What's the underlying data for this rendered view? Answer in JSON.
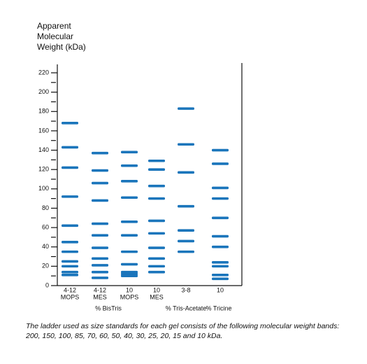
{
  "chart_data": {
    "type": "ladder",
    "title_lines": [
      "Apparent",
      "Molecular",
      "Weight (kDa)"
    ],
    "ylim": [
      0,
      220
    ],
    "yticks": [
      0,
      20,
      40,
      60,
      80,
      100,
      120,
      140,
      160,
      180,
      200,
      220
    ],
    "minor_yticks": [
      10,
      30,
      50,
      70,
      90,
      110,
      130,
      150,
      170,
      190,
      210
    ],
    "color": "#1a75bb",
    "lanes": [
      {
        "label": [
          "4-12",
          "MOPS"
        ],
        "values": [
          168,
          143,
          122,
          92,
          62,
          45,
          35,
          25,
          20,
          14,
          11
        ]
      },
      {
        "label": [
          "4-12",
          "MES"
        ],
        "values": [
          137,
          119,
          106,
          88,
          64,
          52,
          39,
          28,
          21,
          14,
          8
        ]
      },
      {
        "label": [
          "10",
          "MOPS"
        ],
        "values": [
          138,
          124,
          108,
          91,
          66,
          52,
          35,
          22,
          14,
          12,
          10
        ]
      },
      {
        "label": [
          "10",
          "MES"
        ],
        "values": [
          129,
          120,
          103,
          90,
          67,
          54,
          39,
          28,
          20,
          14
        ]
      },
      {
        "label": [
          "3-8"
        ],
        "values": [
          183,
          146,
          117,
          82,
          57,
          46,
          35
        ]
      },
      {
        "label": [
          "10"
        ],
        "values": [
          140,
          126,
          101,
          90,
          70,
          51,
          40,
          24,
          20,
          11,
          7
        ]
      }
    ],
    "groups": [
      "% BisTris",
      "% Tris-Acetate",
      "% Tricine"
    ],
    "caption": [
      "The ladder used as size standards for each gel consists of the following molecular weight bands:",
      "200, 150, 100, 85, 70, 60, 50, 40, 30, 25, 20, 15 and 10 kDa."
    ]
  }
}
